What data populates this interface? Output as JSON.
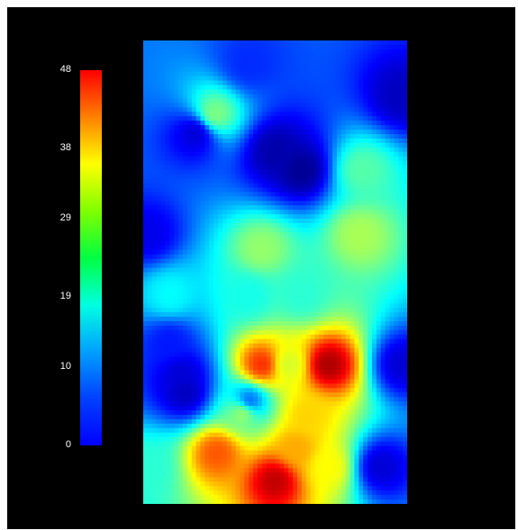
{
  "chart_data": {
    "type": "heatmap",
    "title": "",
    "xlabel": "",
    "ylabel": "",
    "colormap": "jet",
    "colorbar": {
      "min": 0,
      "max": 48,
      "ticks": [
        "48",
        "38",
        "29",
        "19",
        "10",
        "0"
      ],
      "tick_values": [
        48,
        38,
        29,
        19,
        10,
        0
      ]
    },
    "background_color": "#000000",
    "hotspots": [
      {
        "x": 0.5,
        "y": 0.95,
        "value": 45
      },
      {
        "x": 0.58,
        "y": 0.88,
        "value": 34
      },
      {
        "x": 0.7,
        "y": 0.7,
        "value": 46
      },
      {
        "x": 0.45,
        "y": 0.7,
        "value": 40
      },
      {
        "x": 0.55,
        "y": 0.7,
        "value": 28
      },
      {
        "x": 0.28,
        "y": 0.89,
        "value": 38
      },
      {
        "x": 0.62,
        "y": 0.81,
        "value": 32
      },
      {
        "x": 0.7,
        "y": 0.92,
        "value": 30
      },
      {
        "x": 0.27,
        "y": 0.16,
        "value": 24
      },
      {
        "x": 0.45,
        "y": 0.45,
        "value": 25
      },
      {
        "x": 0.82,
        "y": 0.42,
        "value": 26
      },
      {
        "x": 0.83,
        "y": 0.28,
        "value": 22
      },
      {
        "x": 0.1,
        "y": 0.55,
        "value": 18
      },
      {
        "x": 0.6,
        "y": 0.55,
        "value": 20
      },
      {
        "x": 0.4,
        "y": 0.55,
        "value": 19
      },
      {
        "x": 0.38,
        "y": 0.8,
        "value": 26
      },
      {
        "x": 0.02,
        "y": 0.92,
        "value": 20
      },
      {
        "x": 0.5,
        "y": 0.24,
        "value": 2
      },
      {
        "x": 0.6,
        "y": 0.28,
        "value": 1
      },
      {
        "x": 0.2,
        "y": 0.2,
        "value": 4
      },
      {
        "x": 0.15,
        "y": 0.72,
        "value": 4
      },
      {
        "x": 0.16,
        "y": 0.76,
        "value": 3
      },
      {
        "x": 0.98,
        "y": 0.12,
        "value": 3
      },
      {
        "x": 0.98,
        "y": 0.7,
        "value": 4
      },
      {
        "x": 0.9,
        "y": 0.92,
        "value": 4
      },
      {
        "x": 0.02,
        "y": 0.42,
        "value": 5
      },
      {
        "x": 0.4,
        "y": 0.05,
        "value": 8
      },
      {
        "x": 0.4,
        "y": 0.78,
        "value": 10
      },
      {
        "x": 0.1,
        "y": 0.65,
        "value": 7
      }
    ]
  }
}
